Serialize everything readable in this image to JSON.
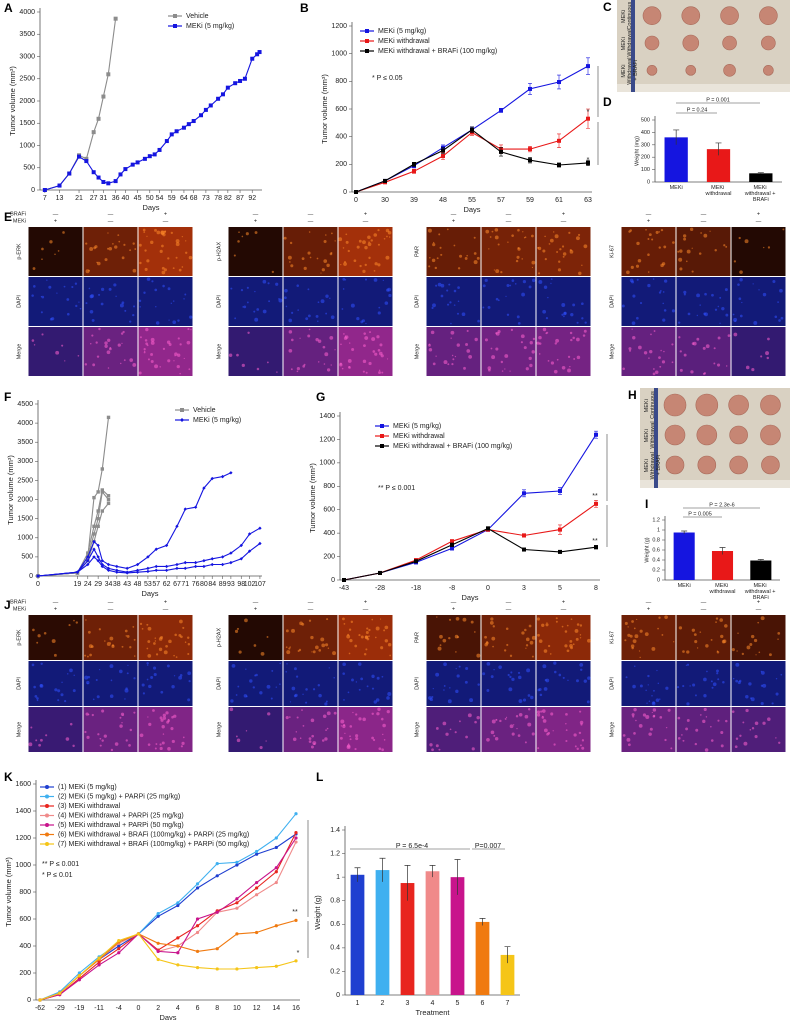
{
  "chart_data": [
    {
      "label": "A",
      "type": "line",
      "xlabel": "Days",
      "ylabel": "Tumor volume (mm³)",
      "xlim": [
        5,
        96
      ],
      "xticks": [
        7,
        13,
        21,
        27,
        31,
        36,
        40,
        45,
        50,
        54,
        59,
        64,
        68,
        73,
        78,
        82,
        87,
        92
      ],
      "ylim": [
        0,
        4000
      ],
      "yticks": [
        0,
        500,
        1000,
        1500,
        2000,
        2500,
        3000,
        3500,
        4000
      ],
      "series": [
        {
          "name": "Vehicle",
          "color": "#8c8c8c",
          "marker": "square",
          "x": [
            7,
            13,
            17,
            21,
            24,
            27,
            29,
            31,
            33,
            36
          ],
          "values": [
            0,
            100,
            370,
            780,
            700,
            1300,
            1600,
            2100,
            2600,
            3850
          ]
        },
        {
          "name": "MEKi (5 mg/kg)",
          "color": "#1515e0",
          "marker": "square",
          "x": [
            7,
            13,
            17,
            21,
            24,
            27,
            29,
            31,
            33,
            36,
            38,
            40,
            43,
            45,
            48,
            50,
            52,
            54,
            57,
            59,
            61,
            64,
            66,
            68,
            71,
            73,
            75,
            78,
            80,
            82,
            85,
            87,
            89,
            92,
            94,
            95
          ],
          "values": [
            0,
            100,
            370,
            750,
            650,
            400,
            280,
            180,
            150,
            200,
            350,
            470,
            570,
            620,
            700,
            760,
            800,
            900,
            1100,
            1250,
            1320,
            1400,
            1480,
            1550,
            1680,
            1800,
            1900,
            2050,
            2150,
            2300,
            2400,
            2450,
            2500,
            2950,
            3050,
            3100
          ]
        }
      ]
    },
    {
      "label": "B",
      "type": "line",
      "xlabel": "Days",
      "ylabel": "Tumor volume (mm³)",
      "categories": [
        0,
        30,
        39,
        48,
        55,
        57,
        59,
        61,
        63
      ],
      "ylim": [
        0,
        1200
      ],
      "yticks": [
        0,
        200,
        400,
        600,
        800,
        1000,
        1200
      ],
      "annotations": [
        "* P ≤ 0.05",
        "*",
        "*"
      ],
      "series": [
        {
          "name": "MEKi (5 mg/kg)",
          "color": "#1515e0",
          "marker": "square",
          "values": [
            0,
            80,
            190,
            320,
            450,
            590,
            745,
            795,
            910
          ],
          "errors": [
            0,
            10,
            15,
            20,
            20,
            15,
            40,
            50,
            60
          ]
        },
        {
          "name": "MEKi withdrawal",
          "color": "#e81818",
          "marker": "square",
          "values": [
            0,
            70,
            150,
            260,
            430,
            310,
            310,
            370,
            530
          ],
          "errors": [
            0,
            10,
            15,
            25,
            20,
            30,
            20,
            50,
            70
          ]
        },
        {
          "name": "MEKi withdrawal + BRAFi (100 mg/kg)",
          "color": "#000000",
          "marker": "square",
          "values": [
            0,
            80,
            200,
            300,
            450,
            290,
            230,
            195,
            210
          ],
          "errors": [
            0,
            10,
            15,
            20,
            20,
            30,
            20,
            15,
            20
          ]
        }
      ]
    },
    {
      "label": "D",
      "type": "bar",
      "ylabel": "Weight (mg)",
      "categories": [
        "MEKi",
        "MEKi withdrawal",
        "MEKi withdrawal + BRAFi"
      ],
      "values": [
        360,
        265,
        70
      ],
      "errors": [
        60,
        50,
        5
      ],
      "colors": [
        "#1515e0",
        "#e81818",
        "#000000"
      ],
      "ylim": [
        0,
        500
      ],
      "yticks": [
        0,
        100,
        200,
        300,
        400,
        500
      ],
      "annotations": [
        "P = 0.001",
        "P = 0.24"
      ]
    },
    {
      "label": "F",
      "type": "line",
      "xlabel": "Days",
      "ylabel": "Tumor volume (mm³)",
      "xlim": [
        0,
        108
      ],
      "xticks": [
        0,
        19,
        24,
        29,
        34,
        38,
        43,
        48,
        53,
        57,
        62,
        67,
        71,
        76,
        80,
        84,
        89,
        93,
        98,
        102,
        107
      ],
      "ylim": [
        0,
        4500
      ],
      "yticks": [
        0,
        500,
        1000,
        1500,
        2000,
        2500,
        3000,
        3500,
        4000,
        4500
      ],
      "series": [
        {
          "name": "Vehicle",
          "color": "#8c8c8c",
          "marker": "square",
          "tumors": [
            {
              "x": [
                0,
                19,
                24,
                27,
                29,
                31,
                34
              ],
              "values": [
                0,
                80,
                500,
                2050,
                2200,
                2800,
                4150
              ]
            },
            {
              "x": [
                0,
                19,
                24,
                27,
                29,
                31,
                34
              ],
              "values": [
                0,
                80,
                600,
                1300,
                1700,
                2250,
                2100
              ]
            },
            {
              "x": [
                0,
                19,
                24,
                27,
                29,
                31,
                34
              ],
              "values": [
                0,
                80,
                500,
                1100,
                1500,
                2200,
                2000
              ]
            },
            {
              "x": [
                0,
                19,
                24,
                27,
                29,
                31,
                34
              ],
              "values": [
                0,
                80,
                400,
                900,
                1300,
                1700,
                1900
              ]
            }
          ]
        },
        {
          "name": "MEKi (5 mg/kg)",
          "color": "#1515e0",
          "marker": "diamond",
          "tumors": [
            {
              "x": [
                0,
                19,
                24,
                27,
                29,
                31,
                34,
                38,
                43,
                48,
                53,
                57,
                62,
                67,
                71,
                76,
                80,
                84,
                89,
                93
              ],
              "values": [
                0,
                100,
                500,
                900,
                800,
                400,
                300,
                250,
                200,
                300,
                500,
                700,
                800,
                1300,
                1750,
                1800,
                2300,
                2550,
                2600,
                2700
              ]
            },
            {
              "x": [
                0,
                19,
                24,
                27,
                29,
                31,
                34,
                38,
                43,
                48,
                53,
                57,
                62,
                67,
                71,
                76,
                80,
                84,
                89,
                93,
                98,
                102,
                107
              ],
              "values": [
                0,
                100,
                400,
                700,
                500,
                300,
                200,
                150,
                100,
                150,
                200,
                250,
                250,
                300,
                350,
                350,
                400,
                450,
                500,
                600,
                800,
                1100,
                1250
              ]
            },
            {
              "x": [
                0,
                19,
                24,
                27,
                29,
                31,
                34,
                38,
                43,
                48,
                53,
                57,
                62,
                67,
                71,
                76,
                80,
                84,
                89,
                93,
                98,
                102,
                107
              ],
              "values": [
                0,
                100,
                300,
                500,
                400,
                250,
                150,
                100,
                80,
                100,
                120,
                150,
                150,
                200,
                200,
                250,
                250,
                300,
                300,
                350,
                450,
                650,
                850
              ]
            }
          ]
        }
      ]
    },
    {
      "label": "G",
      "type": "line",
      "xlabel": "Days",
      "ylabel": "Tumor volume (mm³)",
      "categories": [
        -43,
        -28,
        -18,
        -8,
        0,
        3,
        5,
        8
      ],
      "ylim": [
        0,
        1400
      ],
      "yticks": [
        0,
        200,
        400,
        600,
        800,
        1000,
        1200,
        1400
      ],
      "annotations": [
        "** P ≤ 0.001",
        "**",
        "**"
      ],
      "series": [
        {
          "name": "MEKi (5 mg/kg)",
          "color": "#1515e0",
          "marker": "square",
          "values": [
            0,
            60,
            150,
            270,
            430,
            740,
            760,
            1240
          ],
          "errors": [
            0,
            5,
            10,
            15,
            15,
            30,
            30,
            30
          ]
        },
        {
          "name": "MEKi withdrawal",
          "color": "#e81818",
          "marker": "square",
          "values": [
            0,
            60,
            170,
            330,
            430,
            380,
            430,
            650
          ],
          "errors": [
            0,
            5,
            10,
            15,
            15,
            15,
            40,
            30
          ]
        },
        {
          "name": "MEKi withdrawal + BRAFi (100 mg/kg)",
          "color": "#000000",
          "marker": "square",
          "values": [
            0,
            60,
            160,
            300,
            440,
            260,
            240,
            280
          ],
          "errors": [
            0,
            5,
            10,
            15,
            15,
            10,
            10,
            15
          ]
        }
      ]
    },
    {
      "label": "I",
      "type": "bar",
      "ylabel": "Weight (g)",
      "categories": [
        "MEKi",
        "MEKi withdrawal",
        "MEKi withdrawal + BRAFi"
      ],
      "values": [
        0.95,
        0.58,
        0.39
      ],
      "errors": [
        0.03,
        0.07,
        0.02
      ],
      "colors": [
        "#1515e0",
        "#e81818",
        "#000000"
      ],
      "ylim": [
        0,
        1.2
      ],
      "yticks": [
        0,
        0.2,
        0.4,
        0.6,
        0.8,
        1,
        1.2
      ],
      "annotations": [
        "P = 2.3e-6",
        "P = 0.005"
      ]
    },
    {
      "label": "K",
      "type": "line",
      "xlabel": "Days",
      "ylabel": "Tumor volume (mm³)",
      "categories": [
        -62,
        -29,
        -19,
        -11,
        -4,
        0,
        2,
        4,
        6,
        8,
        10,
        12,
        14,
        16
      ],
      "ylim": [
        0,
        1600
      ],
      "yticks": [
        0,
        200,
        400,
        600,
        800,
        1000,
        1200,
        1400,
        1600
      ],
      "annotations": [
        "** P ≤ 0.001",
        "* P ≤ 0.01",
        "**",
        "*"
      ],
      "series": [
        {
          "name": "(1) MEKi (5 mg/kg)",
          "color": "#1f3fd0",
          "marker": "circle",
          "values": [
            0,
            50,
            180,
            300,
            400,
            490,
            620,
            700,
            830,
            920,
            1000,
            1080,
            1130,
            1230
          ]
        },
        {
          "name": "(2) MEKi (5 mg/kg) + PARPi (25 mg/kg)",
          "color": "#3fb0f0",
          "marker": "circle",
          "values": [
            0,
            60,
            200,
            320,
            420,
            490,
            640,
            720,
            860,
            1010,
            1020,
            1100,
            1200,
            1380
          ]
        },
        {
          "name": "(3) MEKi withdrawal",
          "color": "#e8251f",
          "marker": "circle",
          "values": [
            0,
            40,
            160,
            280,
            380,
            490,
            370,
            460,
            550,
            660,
            720,
            830,
            950,
            1240
          ]
        },
        {
          "name": "(4) MEKi withdrawal + PARPi (25 mg/kg)",
          "color": "#f08a8a",
          "marker": "circle",
          "values": [
            0,
            50,
            180,
            300,
            420,
            490,
            360,
            400,
            500,
            650,
            680,
            780,
            870,
            1170
          ]
        },
        {
          "name": "(5) MEKi withdrawal + PARPi (50 mg/kg)",
          "color": "#c8148c",
          "marker": "circle",
          "values": [
            0,
            40,
            150,
            260,
            350,
            490,
            360,
            350,
            600,
            650,
            750,
            870,
            980,
            1200
          ]
        },
        {
          "name": "(6) MEKi withdrawal + BRAFi (100mg/kg) + PARPi (25 mg/kg)",
          "color": "#f07a10",
          "marker": "circle",
          "values": [
            0,
            50,
            180,
            300,
            430,
            490,
            420,
            400,
            360,
            380,
            490,
            500,
            550,
            590
          ]
        },
        {
          "name": "(7) MEKi withdrawal + BRAFi (100mg/kg) + PARPi (50 mg/kg)",
          "color": "#f5c518",
          "marker": "circle",
          "values": [
            0,
            50,
            180,
            310,
            440,
            490,
            300,
            260,
            240,
            230,
            230,
            240,
            250,
            290
          ]
        }
      ]
    },
    {
      "label": "L",
      "type": "bar",
      "xlabel": "Treatment",
      "ylabel": "Weight (g)",
      "categories": [
        1,
        2,
        3,
        4,
        5,
        6,
        7
      ],
      "values": [
        1.02,
        1.06,
        0.95,
        1.05,
        1.0,
        0.62,
        0.34
      ],
      "errors": [
        0.06,
        0.1,
        0.15,
        0.05,
        0.15,
        0.03,
        0.07
      ],
      "colors": [
        "#1f3fd0",
        "#3fb0f0",
        "#e8251f",
        "#f08a8a",
        "#c8148c",
        "#f07a10",
        "#f5c518"
      ],
      "ylim": [
        0,
        1.4
      ],
      "yticks": [
        0,
        0.2,
        0.4,
        0.6,
        0.8,
        1,
        1.2,
        1.4
      ],
      "annotations": [
        "P = 6.5e-4",
        "P=0.007"
      ]
    }
  ],
  "photo_panels": [
    {
      "label": "C",
      "rows": [
        "MEKi Continuous",
        "MEKi Withdrawal",
        "MEKi Withdrawal + BRAFi"
      ]
    },
    {
      "label": "H",
      "rows": [
        "MEKi Continuous",
        "MEKi Withdrawal",
        "MEKi Withdrawal + BRAFi"
      ]
    }
  ],
  "image_panels": [
    {
      "label": "E",
      "header": [
        {
          "name": "BRAFi",
          "signs": [
            "—",
            "—",
            "+"
          ]
        },
        {
          "name": "MEKi",
          "signs": [
            "+",
            "—",
            "—"
          ]
        }
      ],
      "blocks": [
        {
          "rows": [
            "p-ERK",
            "DAPI",
            "Merge"
          ]
        },
        {
          "rows": [
            "p-H2AX",
            "DAPI",
            "Merge"
          ]
        },
        {
          "rows": [
            "PAR",
            "DAPI",
            "Merge"
          ]
        },
        {
          "rows": [
            "Ki-67",
            "DAPI",
            "Merge"
          ]
        }
      ]
    },
    {
      "label": "J",
      "header": [
        {
          "name": "BRAFi",
          "signs": [
            "—",
            "—",
            "+"
          ]
        },
        {
          "name": "MEKi",
          "signs": [
            "+",
            "—",
            "—"
          ]
        }
      ],
      "blocks": [
        {
          "rows": [
            "p-ERK",
            "DAPI",
            "Merge"
          ]
        },
        {
          "rows": [
            "p-H2AX",
            "DAPI",
            "Merge"
          ]
        },
        {
          "rows": [
            "PAR",
            "DAPI",
            "Merge"
          ]
        },
        {
          "rows": [
            "Ki-67",
            "DAPI",
            "Merge"
          ]
        }
      ]
    }
  ]
}
